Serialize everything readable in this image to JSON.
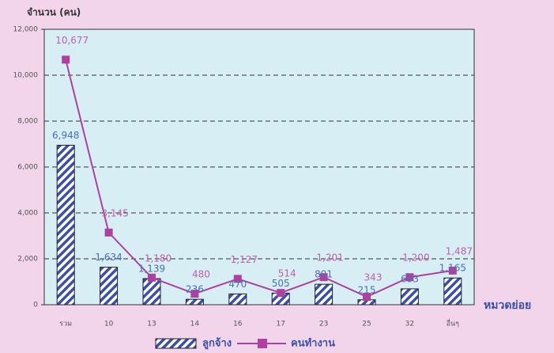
{
  "chart_data": {
    "type": "bar",
    "y_axis_label": "จำนวน (คน)",
    "x_axis_label": "หมวดย่อย",
    "categories": [
      "รวม",
      "10",
      "13",
      "14",
      "16",
      "17",
      "23",
      "25",
      "32",
      "อื่นๆ"
    ],
    "series": [
      {
        "name": "ลูกจ้าง",
        "type": "bar",
        "color": "#3a4fa8",
        "label_color": "#4a6fb5",
        "values": [
          6948,
          1634,
          1139,
          236,
          470,
          505,
          891,
          215,
          693,
          1165
        ],
        "value_labels": [
          "6,948",
          "1,634",
          "1,139",
          "236",
          "470",
          "505",
          "891",
          "215",
          "693",
          "1,165"
        ]
      },
      {
        "name": "คนทำงาน",
        "type": "line",
        "color": "#b040a0",
        "label_color": "#c060a8",
        "values": [
          10677,
          3145,
          1180,
          480,
          1127,
          514,
          1201,
          343,
          1200,
          1487
        ],
        "value_labels": [
          "10,677",
          "3,145",
          "1,180",
          "480",
          "1,127",
          "514",
          "1,201",
          "343",
          "1,200",
          "1,487"
        ]
      }
    ],
    "ylim": [
      0,
      12000
    ],
    "yticks": [
      0,
      {
        "value": 2000,
        "label": "2,000"
      },
      {
        "value": 4000,
        "label": "4,000"
      },
      {
        "value": 6000,
        "label": "6,000"
      },
      {
        "value": 8000,
        "label": "8,000"
      },
      {
        "value": 10000,
        "label": "10,000"
      },
      {
        "value": 12000,
        "label": "12,000"
      }
    ],
    "grid": true
  }
}
